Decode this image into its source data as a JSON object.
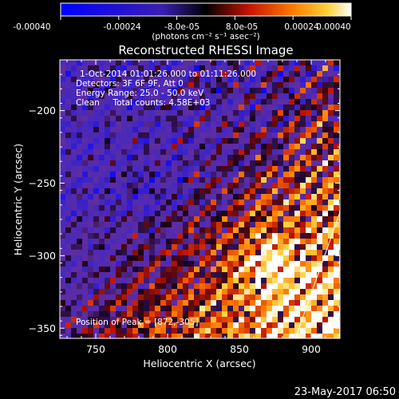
{
  "chart_data": {
    "type": "heatmap",
    "title": "Reconstructed RHESSI Image",
    "xlabel": "Heliocentric X (arcsec)",
    "ylabel": "Heliocentric Y (arcsec)",
    "xlim": [
      725,
      920
    ],
    "ylim": [
      -357,
      -165
    ],
    "x_ticks": [
      750,
      800,
      850,
      900
    ],
    "y_ticks": [
      -350,
      -300,
      -250,
      -200
    ],
    "colorbar": {
      "ticks": [
        "-0.00040",
        "-0.00024",
        "-8.0e-05",
        "8.0e-05",
        "0.00024",
        "0.00040"
      ],
      "unit": "(photons cm⁻² s⁻¹ asec⁻²)",
      "range": [
        -0.0004,
        0.0004
      ]
    },
    "annotations": {
      "time": "1-Oct-2014 01:01:26.000 to 01:11:26.000",
      "detectors": "Detectors: 3F 6F 9F, Att 0",
      "energy": "Energy Range: 25.0 - 50.0 keV",
      "clean": "Clean     Total counts: 4.58E+03",
      "peak": "Position of Peak = [872,-305]"
    },
    "peak_position": [
      872,
      -305
    ],
    "total_counts": 4580,
    "limb_line": {
      "points": [
        [
          889,
          -357
        ],
        [
          920,
          -270
        ]
      ],
      "color": "#ffffff"
    }
  },
  "footer": {
    "timestamp": "23-May-2017 06:50"
  }
}
